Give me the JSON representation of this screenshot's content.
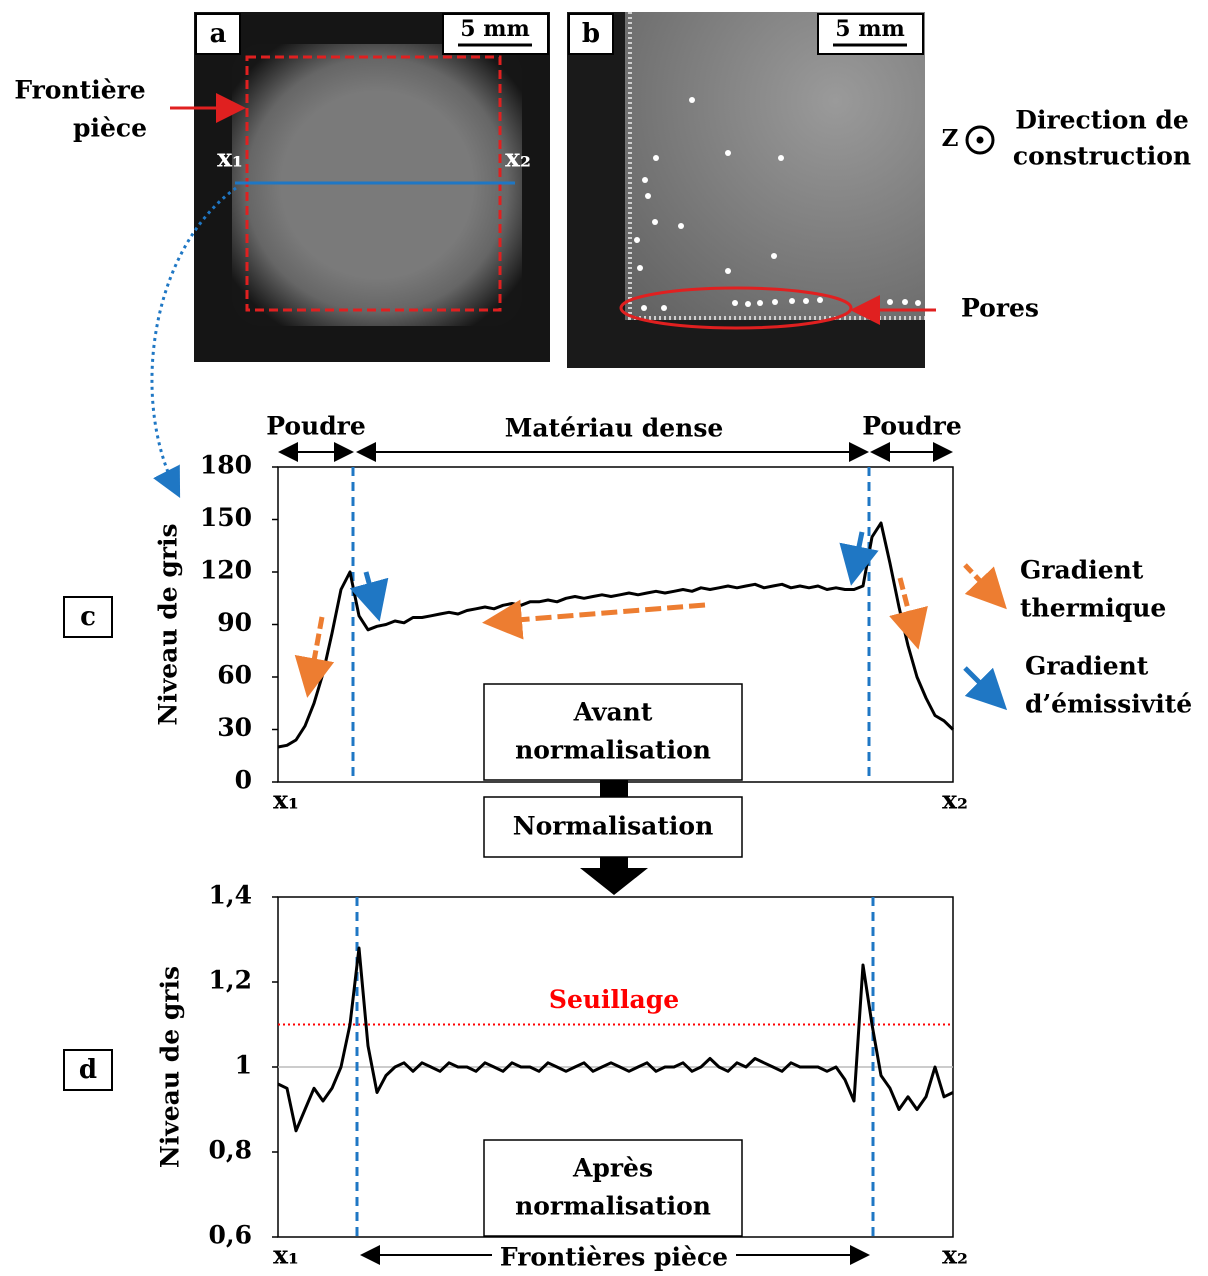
{
  "figure": {
    "panel_a": {
      "label": "a",
      "scale": "5 mm",
      "boundary_label": [
        "Frontière",
        "pièce"
      ],
      "start": "x₁",
      "end": "x₂"
    },
    "panel_b": {
      "label": "b",
      "scale": "5 mm",
      "direction_axis": "Z",
      "direction_label": [
        "Direction de",
        "construction"
      ],
      "pores_label": "Pores"
    },
    "legend": {
      "thermal": [
        "Gradient",
        "thermique"
      ],
      "emissivity": [
        "Gradient",
        "d’émissivité"
      ]
    },
    "flow": {
      "before": [
        "Avant",
        "normalisation"
      ],
      "step": "Normalisation",
      "after": [
        "Après",
        "normalisation"
      ]
    }
  },
  "chart_data": [
    {
      "type": "line",
      "panel": "c",
      "ylabel": "Niveau de gris",
      "regions": [
        "Poudre",
        "Matériau dense",
        "Poudre"
      ],
      "categories": [
        "x₁",
        null,
        null,
        null,
        null,
        null,
        null,
        null,
        null,
        null,
        null,
        null,
        null,
        null,
        null,
        null,
        null,
        null,
        null,
        null,
        null,
        null,
        null,
        null,
        null,
        null,
        null,
        null,
        null,
        null,
        null,
        null,
        null,
        null,
        null,
        null,
        null,
        null,
        null,
        null,
        null,
        null,
        null,
        null,
        null,
        null,
        null,
        null,
        null,
        null,
        null,
        null,
        null,
        null,
        null,
        null,
        null,
        null,
        null,
        null,
        null,
        null,
        null,
        null,
        null,
        null,
        null,
        null,
        null,
        null,
        null,
        null,
        null,
        null,
        null,
        "x₂"
      ],
      "series": [
        {
          "color": "#000000",
          "values": [
            20,
            21,
            24,
            32,
            45,
            62,
            85,
            110,
            120,
            95,
            87,
            89,
            90,
            92,
            91,
            94,
            94,
            95,
            96,
            97,
            96,
            98,
            99,
            100,
            99,
            101,
            102,
            101,
            103,
            103,
            104,
            103,
            105,
            106,
            105,
            106,
            107,
            106,
            107,
            108,
            107,
            108,
            109,
            108,
            109,
            110,
            109,
            111,
            110,
            111,
            112,
            111,
            112,
            113,
            111,
            112,
            113,
            111,
            112,
            111,
            112,
            110,
            111,
            110,
            110,
            112,
            140,
            148,
            125,
            100,
            78,
            60,
            48,
            38,
            35,
            30
          ]
        }
      ],
      "ylim": [
        0,
        180
      ],
      "yticks": [
        0,
        30,
        60,
        90,
        120,
        150,
        180
      ]
    },
    {
      "type": "line",
      "panel": "d",
      "ylabel": "Niveau de gris",
      "boundary_label": "Frontières pièce",
      "threshold": {
        "value": 1.1,
        "label": "Seuillage",
        "color": "#ff0000"
      },
      "reference_line": 1,
      "categories": [
        "x₁",
        null,
        null,
        null,
        null,
        null,
        null,
        null,
        null,
        null,
        null,
        null,
        null,
        null,
        null,
        null,
        null,
        null,
        null,
        null,
        null,
        null,
        null,
        null,
        null,
        null,
        null,
        null,
        null,
        null,
        null,
        null,
        null,
        null,
        null,
        null,
        null,
        null,
        null,
        null,
        null,
        null,
        null,
        null,
        null,
        null,
        null,
        null,
        null,
        null,
        null,
        null,
        null,
        null,
        null,
        null,
        null,
        null,
        null,
        null,
        null,
        null,
        null,
        null,
        null,
        null,
        null,
        null,
        null,
        null,
        null,
        null,
        null,
        null,
        null,
        "x₂"
      ],
      "series": [
        {
          "color": "#000000",
          "values": [
            0.96,
            0.95,
            0.85,
            0.9,
            0.95,
            0.92,
            0.95,
            1.0,
            1.1,
            1.28,
            1.05,
            0.94,
            0.98,
            1.0,
            1.01,
            0.99,
            1.01,
            1.0,
            0.99,
            1.01,
            1.0,
            1.0,
            0.99,
            1.01,
            1.0,
            0.99,
            1.01,
            1.0,
            1.0,
            0.99,
            1.01,
            1.0,
            0.99,
            1.0,
            1.01,
            0.99,
            1.0,
            1.01,
            1.0,
            0.99,
            1.0,
            1.01,
            0.99,
            1.0,
            1.0,
            1.01,
            0.99,
            1.0,
            1.02,
            1.0,
            0.99,
            1.01,
            1.0,
            1.02,
            1.01,
            1.0,
            0.99,
            1.01,
            1.0,
            1.0,
            1.0,
            0.99,
            1.0,
            0.97,
            0.92,
            1.24,
            1.1,
            0.98,
            0.95,
            0.9,
            0.93,
            0.9,
            0.93,
            1.0,
            0.93,
            0.94
          ]
        }
      ],
      "ylim": [
        0.6,
        1.4
      ],
      "yticks": [
        {
          "value": 0.6,
          "label": "0,6"
        },
        {
          "value": 0.8,
          "label": "0,8"
        },
        1,
        {
          "value": 1.2,
          "label": "1,2"
        },
        {
          "value": 1.4,
          "label": "1,4"
        }
      ]
    }
  ]
}
